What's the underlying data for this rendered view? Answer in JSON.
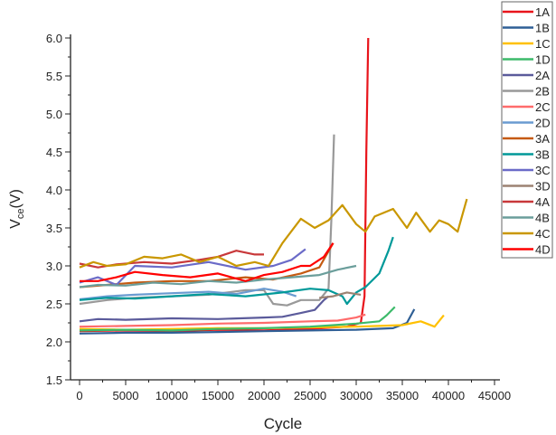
{
  "chart_data": {
    "type": "line",
    "title": "",
    "xlabel": "Cycle",
    "ylabel_main": "V",
    "ylabel_sub": "ce",
    "ylabel_unit": "(V)",
    "xlim": [
      -1000,
      45000
    ],
    "ylim": [
      1.5,
      6.0
    ],
    "xticks": [
      0,
      5000,
      10000,
      15000,
      20000,
      25000,
      30000,
      35000,
      40000,
      45000
    ],
    "yticks": [
      1.5,
      2.0,
      2.5,
      3.0,
      3.5,
      4.0,
      4.5,
      5.0,
      5.5,
      6.0
    ],
    "ytick_labels": [
      "1.5",
      "2.0",
      "2.5",
      "3.0",
      "3.5",
      "4.0",
      "4.5",
      "5.0",
      "5.5",
      "6.0"
    ],
    "grid": false,
    "legend_placement": "right",
    "series": [
      {
        "name": "1A",
        "color": "#e8141b",
        "x": [
          0,
          5000,
          10000,
          15000,
          20000,
          25000,
          29000,
          30500,
          30900,
          31100,
          31300
        ],
        "y": [
          2.14,
          2.15,
          2.14,
          2.16,
          2.15,
          2.17,
          2.2,
          2.25,
          2.6,
          4.5,
          6.0
        ]
      },
      {
        "name": "1B",
        "color": "#2f5f95",
        "x": [
          0,
          5000,
          10000,
          15000,
          20000,
          25000,
          30000,
          34000,
          35500,
          36300
        ],
        "y": [
          2.11,
          2.12,
          2.12,
          2.13,
          2.14,
          2.15,
          2.16,
          2.18,
          2.25,
          2.43
        ]
      },
      {
        "name": "1C",
        "color": "#ffc000",
        "x": [
          0,
          5000,
          10000,
          15000,
          20000,
          25000,
          30000,
          35000,
          37000,
          38500,
          39500
        ],
        "y": [
          2.17,
          2.16,
          2.17,
          2.18,
          2.18,
          2.19,
          2.2,
          2.22,
          2.27,
          2.2,
          2.35
        ]
      },
      {
        "name": "1D",
        "color": "#3cba6a",
        "x": [
          0,
          5000,
          10000,
          15000,
          20000,
          25000,
          30000,
          32500,
          33300,
          34200
        ],
        "y": [
          2.15,
          2.16,
          2.15,
          2.17,
          2.18,
          2.2,
          2.24,
          2.27,
          2.35,
          2.46
        ]
      },
      {
        "name": "2A",
        "color": "#5b5b9b",
        "x": [
          0,
          2000,
          5000,
          10000,
          15000,
          20000,
          22000,
          24000,
          25500,
          26500,
          27000
        ],
        "y": [
          2.27,
          2.3,
          2.29,
          2.31,
          2.3,
          2.32,
          2.33,
          2.38,
          2.42,
          2.55,
          2.6
        ]
      },
      {
        "name": "2B",
        "color": "#999999",
        "x": [
          0,
          3000,
          6000,
          10000,
          14000,
          18000,
          20000,
          21000,
          22500,
          24000,
          26000,
          27000,
          27300,
          27600
        ],
        "y": [
          2.5,
          2.55,
          2.58,
          2.6,
          2.62,
          2.68,
          2.68,
          2.5,
          2.48,
          2.55,
          2.55,
          2.7,
          3.6,
          4.73
        ]
      },
      {
        "name": "2C",
        "color": "#ff6b6b",
        "x": [
          0,
          5000,
          10000,
          15000,
          20000,
          25000,
          28000,
          30000,
          31000
        ],
        "y": [
          2.2,
          2.21,
          2.22,
          2.24,
          2.25,
          2.27,
          2.28,
          2.32,
          2.36
        ]
      },
      {
        "name": "2D",
        "color": "#6a9bd1",
        "x": [
          0,
          3000,
          6000,
          10000,
          14000,
          17000,
          20000,
          22000,
          23500
        ],
        "y": [
          2.56,
          2.6,
          2.62,
          2.64,
          2.66,
          2.63,
          2.7,
          2.66,
          2.6
        ]
      },
      {
        "name": "3A",
        "color": "#c55a11",
        "x": [
          0,
          3000,
          6000,
          10000,
          14000,
          18000,
          21000,
          24000,
          26000,
          27500
        ],
        "y": [
          2.72,
          2.75,
          2.78,
          2.8,
          2.8,
          2.85,
          2.82,
          2.9,
          2.98,
          3.3
        ]
      },
      {
        "name": "3B",
        "color": "#009999",
        "x": [
          0,
          3000,
          6000,
          10000,
          14000,
          18000,
          22000,
          25000,
          27000,
          28500,
          29000,
          30000,
          31000,
          32500,
          33500,
          34000
        ],
        "y": [
          2.55,
          2.58,
          2.57,
          2.6,
          2.63,
          2.6,
          2.65,
          2.7,
          2.68,
          2.6,
          2.5,
          2.65,
          2.72,
          2.9,
          3.2,
          3.38
        ]
      },
      {
        "name": "3C",
        "color": "#6b6bc8",
        "x": [
          0,
          2000,
          4000,
          6000,
          10000,
          14000,
          18000,
          21000,
          23000,
          24500
        ],
        "y": [
          2.78,
          2.85,
          2.75,
          3.0,
          2.98,
          3.05,
          2.95,
          3.0,
          3.08,
          3.22
        ]
      },
      {
        "name": "3D",
        "color": "#9c8272",
        "x": [
          26000,
          27500,
          29000,
          30500
        ],
        "y": [
          2.58,
          2.6,
          2.65,
          2.62
        ]
      },
      {
        "name": "4A",
        "color": "#c8383a",
        "x": [
          0,
          2000,
          4000,
          7000,
          10000,
          13000,
          15000,
          17000,
          19000,
          20000
        ],
        "y": [
          3.03,
          2.98,
          3.02,
          3.05,
          3.03,
          3.08,
          3.12,
          3.2,
          3.15,
          3.15
        ]
      },
      {
        "name": "4B",
        "color": "#6b9e9b",
        "x": [
          0,
          2000,
          5000,
          8000,
          11000,
          14000,
          17000,
          20000,
          23000,
          26000,
          28000,
          30000
        ],
        "y": [
          2.72,
          2.75,
          2.74,
          2.78,
          2.76,
          2.8,
          2.78,
          2.82,
          2.85,
          2.88,
          2.95,
          3.0
        ]
      },
      {
        "name": "4C",
        "color": "#c99700",
        "x": [
          0,
          1500,
          3000,
          5000,
          7000,
          9000,
          11000,
          13000,
          15000,
          17000,
          19000,
          20500,
          22000,
          24000,
          25500,
          27000,
          28500,
          30000,
          31000,
          32000,
          34000,
          35500,
          36500,
          38000,
          39000,
          40000,
          41000,
          42000
        ],
        "y": [
          2.98,
          3.05,
          3.0,
          3.02,
          3.12,
          3.1,
          3.15,
          3.05,
          3.12,
          3.0,
          3.05,
          3.0,
          3.3,
          3.62,
          3.5,
          3.6,
          3.8,
          3.55,
          3.45,
          3.65,
          3.75,
          3.5,
          3.7,
          3.45,
          3.6,
          3.55,
          3.45,
          3.88
        ]
      },
      {
        "name": "4D",
        "color": "#ff0000",
        "x": [
          0,
          2000,
          4000,
          6000,
          9000,
          12000,
          15000,
          18000,
          20000,
          22000,
          24000,
          25000,
          26500,
          27500
        ],
        "y": [
          2.8,
          2.8,
          2.85,
          2.92,
          2.88,
          2.85,
          2.9,
          2.8,
          2.88,
          2.92,
          3.0,
          3.0,
          3.12,
          3.3
        ]
      }
    ]
  }
}
